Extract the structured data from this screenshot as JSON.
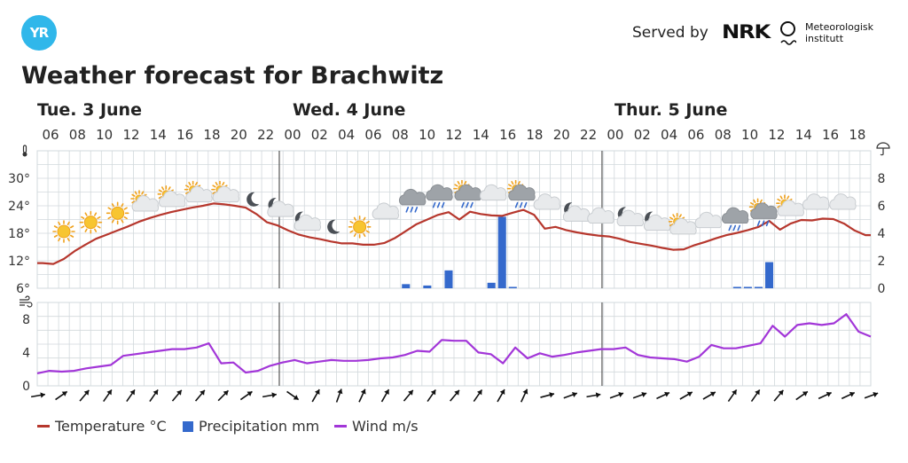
{
  "header": {
    "logo_text": "YR",
    "served_by": "Served by",
    "nrk": "NRK",
    "met_line1": "Meteorologisk",
    "met_line2": "institutt",
    "title": "Weather forecast for Brachwitz"
  },
  "colors": {
    "temperature": "#b6372d",
    "precipitation": "#3469cc",
    "wind": "#a236d8",
    "grid": "#d2d8dc",
    "day_divider": "#555555"
  },
  "legend": {
    "temperature": "Temperature °C",
    "precipitation": "Precipitation mm",
    "wind": "Wind m/s"
  },
  "chart_data": {
    "type": "line",
    "days": [
      "Tue. 3 June",
      "Wed. 4 June",
      "Thur. 5 June"
    ],
    "hour_labels": [
      "06",
      "08",
      "10",
      "12",
      "14",
      "16",
      "18",
      "20",
      "22",
      "00",
      "02",
      "04",
      "06",
      "08",
      "10",
      "12",
      "14",
      "16",
      "18",
      "20",
      "22",
      "00",
      "02",
      "04",
      "06",
      "08",
      "10",
      "12",
      "14",
      "16",
      "18"
    ],
    "temp_ticks": [
      "30°",
      "24°",
      "18°",
      "12°",
      "6°"
    ],
    "temp_range": [
      6,
      36
    ],
    "precip_ticks": [
      "8",
      "6",
      "4",
      "2",
      "0"
    ],
    "precip_range": [
      0,
      10
    ],
    "wind_ticks": [
      "8",
      "4",
      "0"
    ],
    "wind_range": [
      0,
      10
    ],
    "grid": true,
    "legend_position": "bottom-left",
    "temperature": [
      11.5,
      11.3,
      12.4,
      14.1,
      15.5,
      16.8,
      17.7,
      18.6,
      19.5,
      20.5,
      21.3,
      22,
      22.6,
      23.1,
      23.6,
      24,
      24.5,
      24.3,
      24,
      23.6,
      22.2,
      20.4,
      19.7,
      18.6,
      17.7,
      17.1,
      16.7,
      16.2,
      15.8,
      15.8,
      15.5,
      15.5,
      15.9,
      17,
      18.5,
      20,
      21,
      22,
      22.6,
      21,
      22.7,
      22.2,
      21.9,
      21.8,
      22.5,
      23.1,
      22,
      19,
      19.4,
      18.7,
      18.2,
      17.8,
      17.5,
      17.3,
      16.8,
      16.1,
      15.7,
      15.3,
      14.8,
      14.4,
      14.5,
      15.4,
      16.1,
      16.9,
      17.6,
      18.1,
      18.7,
      19.4,
      20.7,
      18.8,
      20.1,
      20.9,
      20.8,
      21.2,
      21.1,
      20.1,
      18.6,
      17.6
    ],
    "precipitation": [
      0,
      0,
      0,
      0,
      0,
      0,
      0,
      0,
      0,
      0,
      0,
      0,
      0,
      0,
      0,
      0,
      0,
      0,
      0,
      0,
      0,
      0,
      0,
      0,
      0,
      0,
      0,
      0,
      0,
      0,
      0,
      0,
      0,
      0,
      0.3,
      0,
      0.2,
      0,
      1.3,
      0,
      0,
      0,
      0.4,
      5.2,
      0.1,
      0,
      0,
      0,
      0,
      0,
      0,
      0,
      0,
      0,
      0,
      0,
      0,
      0,
      0,
      0,
      0,
      0,
      0,
      0,
      0,
      0.1,
      0.1,
      0.1,
      1.9,
      0,
      0,
      0,
      0,
      0,
      0,
      0,
      0,
      0
    ],
    "wind": [
      1.5,
      1.8,
      1.7,
      1.8,
      2.1,
      2.3,
      2.5,
      3.6,
      3.8,
      4,
      4.2,
      4.4,
      4.4,
      4.6,
      5.1,
      2.7,
      2.8,
      1.6,
      1.8,
      2.4,
      2.8,
      3.1,
      2.7,
      2.9,
      3.1,
      3,
      3,
      3.1,
      3.3,
      3.4,
      3.7,
      4.2,
      4.1,
      5.5,
      5.4,
      5.4,
      4,
      3.8,
      2.7,
      4.6,
      3.3,
      3.9,
      3.5,
      3.7,
      4,
      4.2,
      4.4,
      4.4,
      4.6,
      3.7,
      3.4,
      3.3,
      3.2,
      2.9,
      3.5,
      4.9,
      4.5,
      4.5,
      4.8,
      5.1,
      7.2,
      5.9,
      7.3,
      7.5,
      7.3,
      7.5,
      8.6,
      6.5,
      5.9
    ],
    "weather_icons": [
      {
        "slot": 1,
        "icon": "sun-icon",
        "temp": 18
      },
      {
        "slot": 2,
        "icon": "sun-icon",
        "temp": 20
      },
      {
        "slot": 3,
        "icon": "sun-icon",
        "temp": 22
      },
      {
        "slot": 4,
        "icon": "partly-cloudy-icon",
        "temp": 24
      },
      {
        "slot": 5,
        "icon": "partly-cloudy-icon",
        "temp": 25
      },
      {
        "slot": 6,
        "icon": "partly-cloudy-icon",
        "temp": 26
      },
      {
        "slot": 7,
        "icon": "partly-cloudy-icon",
        "temp": 26
      },
      {
        "slot": 8,
        "icon": "moon-icon",
        "temp": 25
      },
      {
        "slot": 9,
        "icon": "moon-cloud-icon",
        "temp": 23
      },
      {
        "slot": 10,
        "icon": "moon-cloud-icon",
        "temp": 20
      },
      {
        "slot": 11,
        "icon": "moon-icon",
        "temp": 19
      },
      {
        "slot": 12,
        "icon": "sun-icon",
        "temp": 19
      },
      {
        "slot": 13,
        "icon": "cloud-icon",
        "temp": 22
      },
      {
        "slot": 14,
        "icon": "rain-cloud-icon",
        "temp": 25
      },
      {
        "slot": 15,
        "icon": "rain-cloud-icon",
        "temp": 26
      },
      {
        "slot": 16,
        "icon": "sun-rain-cloud-icon",
        "temp": 26
      },
      {
        "slot": 17,
        "icon": "cloud-icon",
        "temp": 26
      },
      {
        "slot": 18,
        "icon": "sun-rain-cloud-icon",
        "temp": 26
      },
      {
        "slot": 19,
        "icon": "cloud-icon",
        "temp": 24
      },
      {
        "slot": 20,
        "icon": "moon-cloud-icon",
        "temp": 22
      },
      {
        "slot": 21,
        "icon": "cloud-icon",
        "temp": 21
      },
      {
        "slot": 22,
        "icon": "moon-cloud-icon",
        "temp": 21
      },
      {
        "slot": 23,
        "icon": "moon-cloud-icon",
        "temp": 20
      },
      {
        "slot": 24,
        "icon": "sun-cloud-icon",
        "temp": 19
      },
      {
        "slot": 25,
        "icon": "cloud-icon",
        "temp": 20
      },
      {
        "slot": 26,
        "icon": "rain-cloud-icon",
        "temp": 21
      },
      {
        "slot": 27,
        "icon": "sun-rain-cloud-icon",
        "temp": 22
      },
      {
        "slot": 28,
        "icon": "sun-cloud-icon",
        "temp": 23
      },
      {
        "slot": 29,
        "icon": "cloud-icon",
        "temp": 24
      },
      {
        "slot": 30,
        "icon": "cloud-icon",
        "temp": 24
      }
    ],
    "wind_dir_deg": [
      80,
      55,
      40,
      35,
      35,
      35,
      40,
      40,
      45,
      55,
      80,
      125,
      30,
      20,
      25,
      30,
      40,
      35,
      40,
      35,
      30,
      25,
      75,
      70,
      80,
      70,
      70,
      65,
      60,
      60,
      35,
      35,
      40,
      55,
      65,
      65,
      70
    ]
  }
}
